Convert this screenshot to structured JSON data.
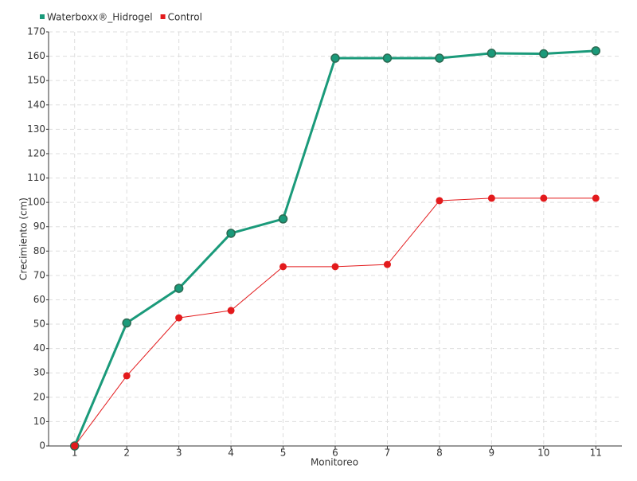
{
  "chart_data": {
    "type": "line",
    "x_label": "Monitoreo",
    "y_label": "Crecimiento (cm)",
    "categories": [
      "1",
      "2",
      "3",
      "4",
      "5",
      "6",
      "7",
      "8",
      "9",
      "10",
      "11"
    ],
    "series": [
      {
        "name": "Waterboxx®_Hidrogel",
        "color": "#1a9a7a",
        "values": [
          0,
          50.5,
          64.7,
          87.3,
          93.2,
          159.2,
          159.2,
          159.2,
          161.2,
          161.0,
          162.2
        ]
      },
      {
        "name": "Control",
        "color": "#e31a1c",
        "values": [
          0,
          28.8,
          52.6,
          55.6,
          73.6,
          73.6,
          74.5,
          100.7,
          101.7,
          101.7,
          101.7
        ]
      }
    ],
    "ylim": [
      0,
      170
    ],
    "yticks": [
      0,
      10,
      20,
      30,
      40,
      50,
      60,
      70,
      80,
      90,
      100,
      110,
      120,
      130,
      140,
      150,
      160,
      170
    ],
    "grid": true,
    "legend": "top-left"
  }
}
